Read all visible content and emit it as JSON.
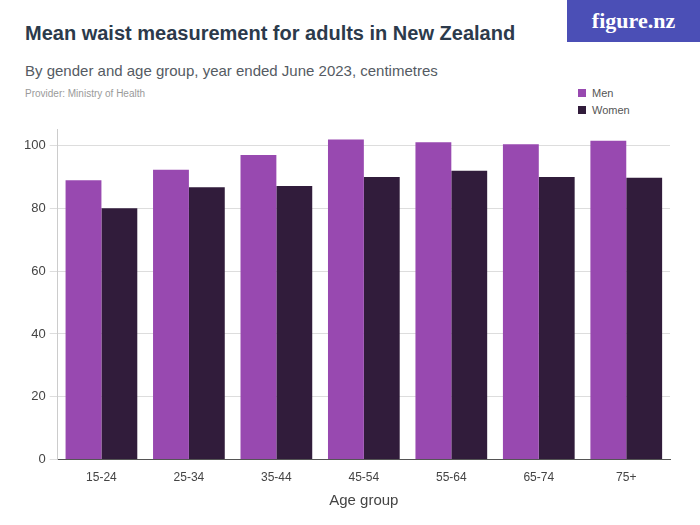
{
  "chart_data": {
    "type": "bar",
    "title": "Mean waist measurement for adults in New Zealand",
    "subtitle": "By gender and age group, year ended June 2023, centimetres",
    "source": "Provider: Ministry of Health",
    "brand": "figure.nz",
    "x_label": "Age group",
    "categories": [
      "15-24",
      "25-34",
      "35-44",
      "45-54",
      "55-64",
      "65-74",
      "75+"
    ],
    "series": [
      {
        "name": "Men",
        "color": "#9849b0",
        "values": [
          88.9,
          92.3,
          97.0,
          101.9,
          101.0,
          100.4,
          101.5
        ]
      },
      {
        "name": "Women",
        "color": "#311c3b",
        "values": [
          80.0,
          86.7,
          87.1,
          90.0,
          92.0,
          90.0,
          89.7
        ]
      }
    ],
    "ylim": [
      0,
      105
    ],
    "yticks": [
      0,
      20,
      40,
      60,
      80,
      100
    ],
    "grid": true,
    "legend": "upper right"
  }
}
